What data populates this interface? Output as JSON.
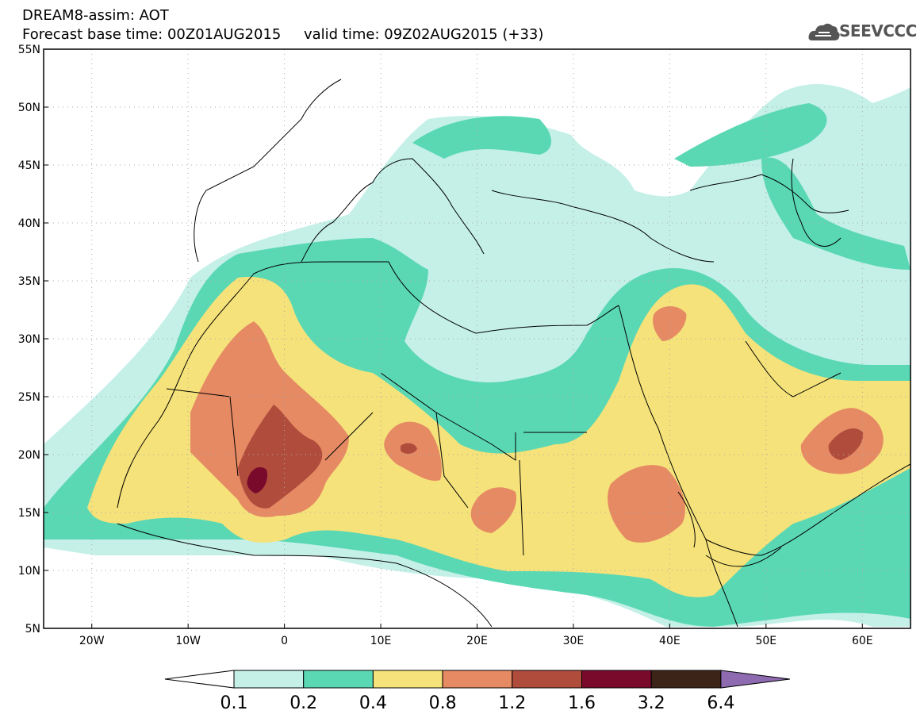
{
  "header": {
    "title_line1": "DREAM8-assim: AOT",
    "forecast_label": "Forecast base time: 00Z01AUG2015",
    "valid_label": "valid time: 09Z02AUG2015 (+33)",
    "logo_text": "SEEVCCC"
  },
  "map": {
    "lat_labels": [
      "55N",
      "50N",
      "45N",
      "40N",
      "35N",
      "30N",
      "25N",
      "20N",
      "15N",
      "10N",
      "5N"
    ],
    "lon_labels": [
      "20W",
      "10W",
      "0",
      "10E",
      "20E",
      "30E",
      "40E",
      "50E",
      "60E"
    ],
    "lat_range": [
      5,
      55
    ],
    "lon_range": [
      -25,
      65
    ]
  },
  "legend": {
    "thresholds": [
      "0.1",
      "0.2",
      "0.4",
      "0.8",
      "1.2",
      "1.6",
      "3.2",
      "6.4"
    ],
    "colors": [
      "#ffffff",
      "#c4f0e8",
      "#5ad8b4",
      "#f5e27a",
      "#e68a64",
      "#b04c3c",
      "#7a0a2c",
      "#3d2418",
      "#8e6ab0"
    ]
  }
}
